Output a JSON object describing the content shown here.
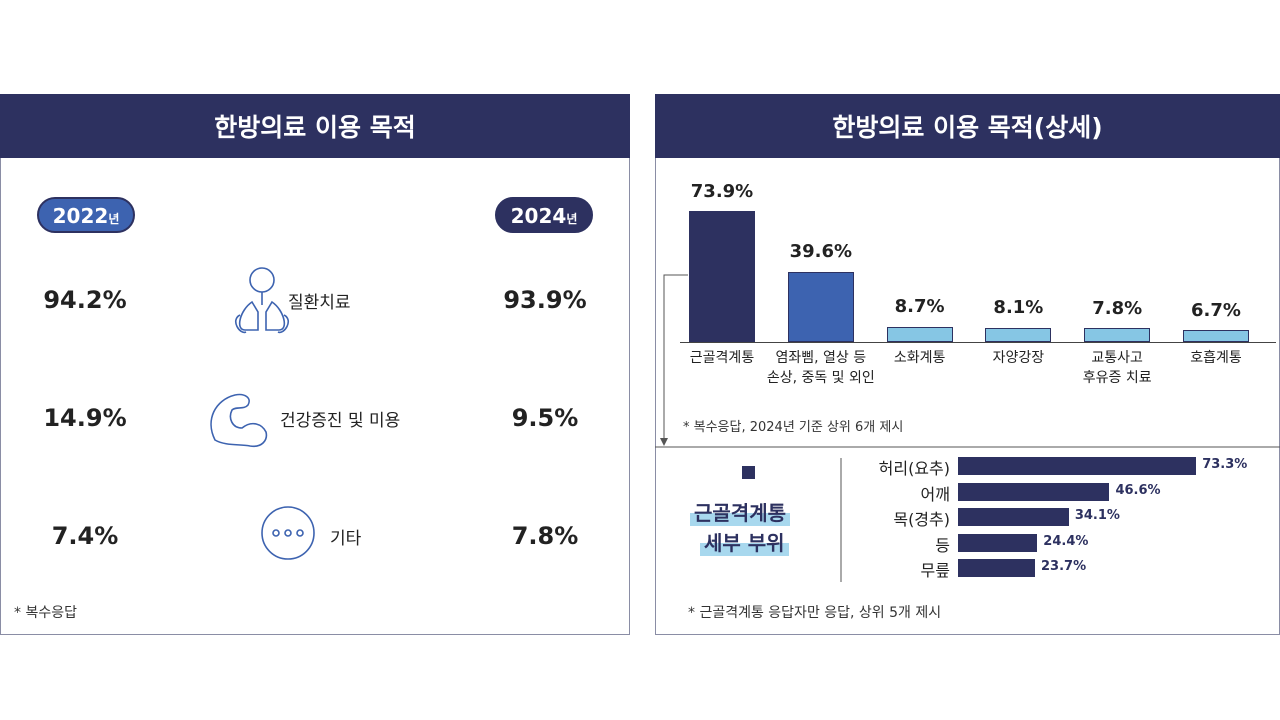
{
  "left_panel": {
    "title": "한방의료 이용 목적",
    "years": [
      {
        "year": "2022",
        "suffix": "년"
      },
      {
        "year": "2024",
        "suffix": "년"
      }
    ],
    "rows": [
      {
        "before": "94.2%",
        "label": "질환치료",
        "after": "93.9%"
      },
      {
        "before": "14.9%",
        "label": "건강증진 및 미용",
        "after": "9.5%"
      },
      {
        "before": "7.4%",
        "label": "기타",
        "after": "7.8%"
      }
    ],
    "note": "* 복수응답"
  },
  "right_panel": {
    "title": "한방의료 이용 목적(상세)",
    "sub_title": [
      "근골격계통",
      "세부 부위"
    ]
  },
  "chart_data": [
    {
      "type": "bar",
      "categories": [
        "근골격계통",
        "염좌삠, 열상 등\n손상, 중독 및 외인",
        "소화계통",
        "자양강장",
        "교통사고\n후유증 치료",
        "호흡계통"
      ],
      "values": [
        73.9,
        39.6,
        8.7,
        8.1,
        7.8,
        6.7
      ],
      "value_labels": [
        "73.9%",
        "39.6%",
        "8.7%",
        "8.1%",
        "7.8%",
        "6.7%"
      ],
      "colors": [
        "#2d3160",
        "#3d63b0",
        "#86c6e4",
        "#86c6e4",
        "#86c6e4",
        "#86c6e4"
      ],
      "note": "* 복수응답, 2024년 기준 상위 6개 제시"
    },
    {
      "type": "barh",
      "categories": [
        "허리(요추)",
        "어깨",
        "목(경추)",
        "등",
        "무릎"
      ],
      "values": [
        73.3,
        46.6,
        34.1,
        24.4,
        23.7
      ],
      "value_labels": [
        "73.3%",
        "46.6%",
        "34.1%",
        "24.4%",
        "23.7%"
      ],
      "color": "#2d3160",
      "note": "* 근골격계통 응답자만 응답, 상위 5개 제시"
    }
  ]
}
